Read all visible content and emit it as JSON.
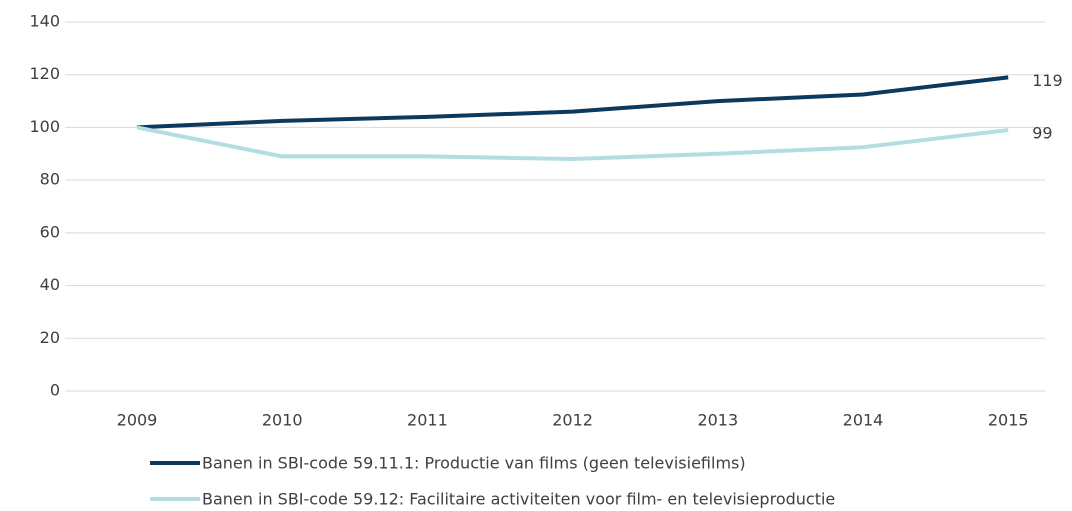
{
  "chart_data": {
    "type": "line",
    "categories": [
      "2009",
      "2010",
      "2011",
      "2012",
      "2013",
      "2014",
      "2015"
    ],
    "series": [
      {
        "name": "Banen in SBI-code 59.11.1: Productie van films (geen televisiefilms)",
        "color": "#0d3a5c",
        "values": [
          100,
          102.5,
          104,
          106,
          110,
          112.5,
          119
        ]
      },
      {
        "name": "Banen in SBI-code 59.12: Facilitaire activiteiten voor film- en televisieproductie",
        "color": "#b3dde0",
        "values": [
          100,
          89,
          89,
          88,
          90,
          92.5,
          99
        ]
      }
    ],
    "ylim": [
      0,
      140
    ],
    "yticks": [
      0,
      20,
      40,
      60,
      80,
      100,
      120,
      140
    ],
    "grid": true,
    "legend": "bottom"
  }
}
